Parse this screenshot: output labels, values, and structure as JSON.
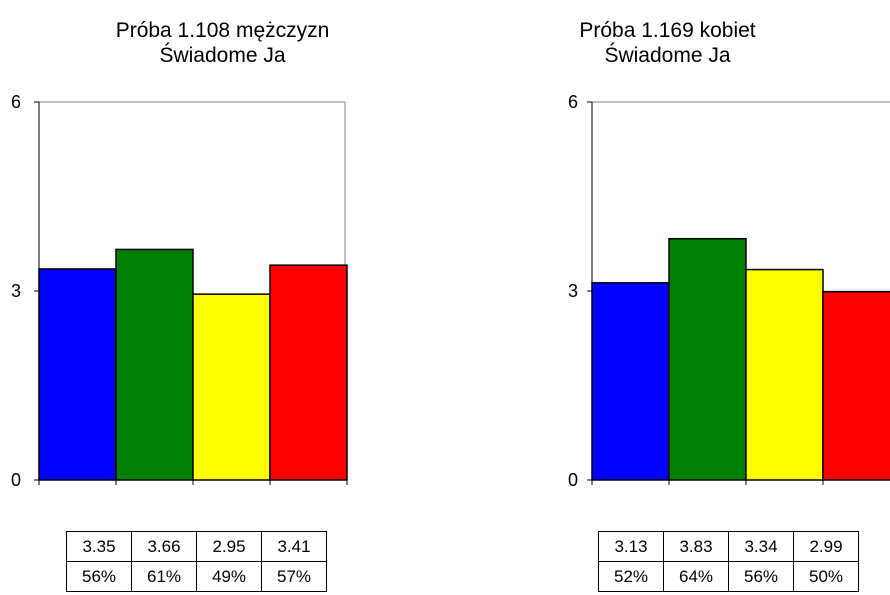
{
  "chart_data": [
    {
      "type": "bar",
      "title": "Próba 1.108 mężczyzn",
      "subtitle": "Świadome Ja",
      "ylim": [
        0,
        6
      ],
      "yticks": [
        "0",
        "3",
        "6"
      ],
      "values": [
        3.35,
        3.66,
        2.95,
        3.41
      ],
      "colors": [
        "#0000ff",
        "#007f00",
        "#ffff00",
        "#ff0000"
      ],
      "table": {
        "values": [
          "3.35",
          "3.66",
          "2.95",
          "3.41"
        ],
        "percents": [
          "56%",
          "61%",
          "49%",
          "57%"
        ]
      }
    },
    {
      "type": "bar",
      "title": "Próba 1.169 kobiet",
      "subtitle": "Świadome Ja",
      "ylim": [
        0,
        6
      ],
      "yticks": [
        "0",
        "3",
        "6"
      ],
      "values": [
        3.13,
        3.83,
        3.34,
        2.99
      ],
      "colors": [
        "#0000ff",
        "#007f00",
        "#ffff00",
        "#ff0000"
      ],
      "table": {
        "values": [
          "3.13",
          "3.83",
          "3.34",
          "2.99"
        ],
        "percents": [
          "52%",
          "64%",
          "56%",
          "50%"
        ]
      }
    }
  ]
}
